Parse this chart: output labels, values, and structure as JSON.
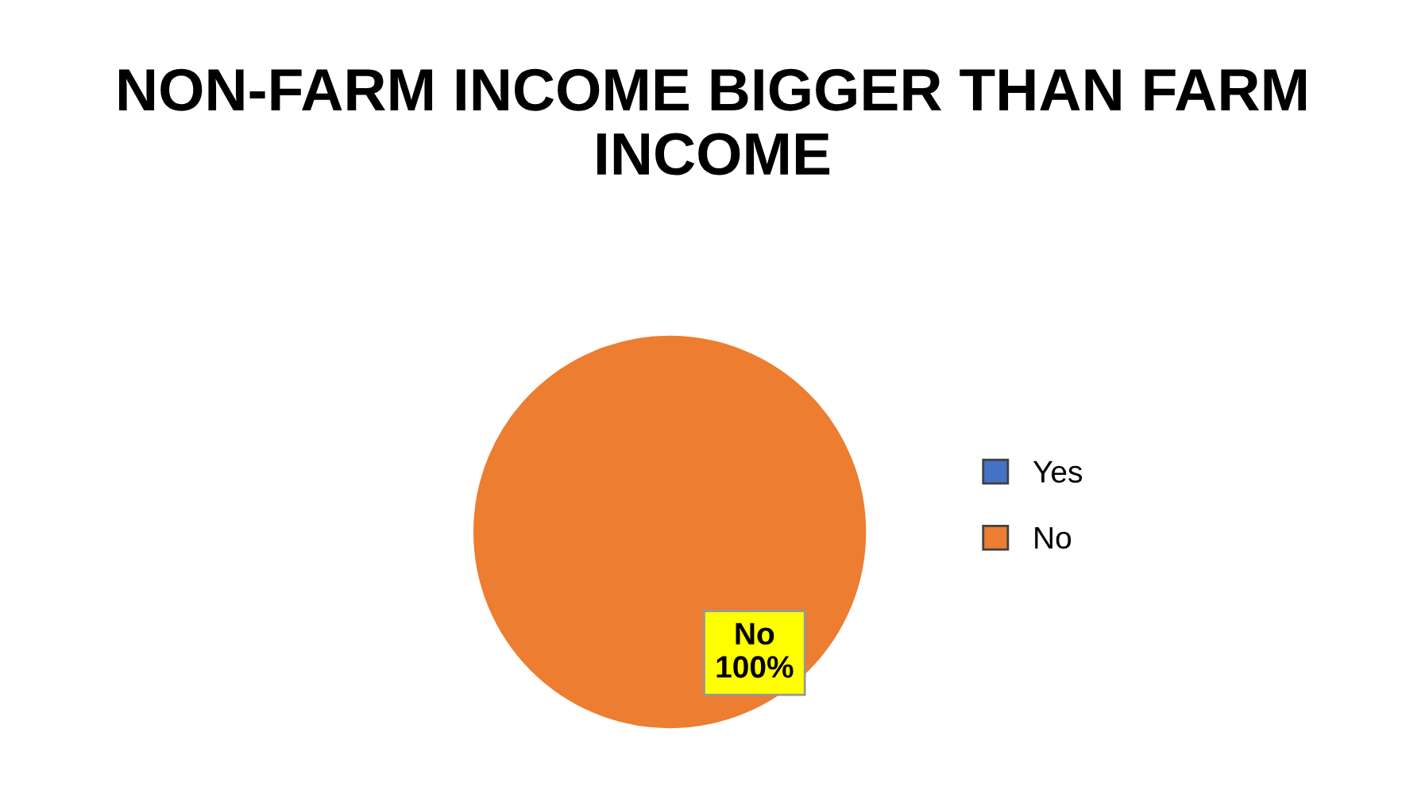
{
  "chart_data": {
    "type": "pie",
    "title": "NON-FARM INCOME BIGGER THAN FARM INCOME",
    "categories": [
      "Yes",
      "No"
    ],
    "values": [
      0,
      100
    ],
    "colors": [
      "#4472c4",
      "#ed7d31"
    ],
    "value_labels": [
      null,
      "No\n100%"
    ],
    "legend": "right"
  }
}
